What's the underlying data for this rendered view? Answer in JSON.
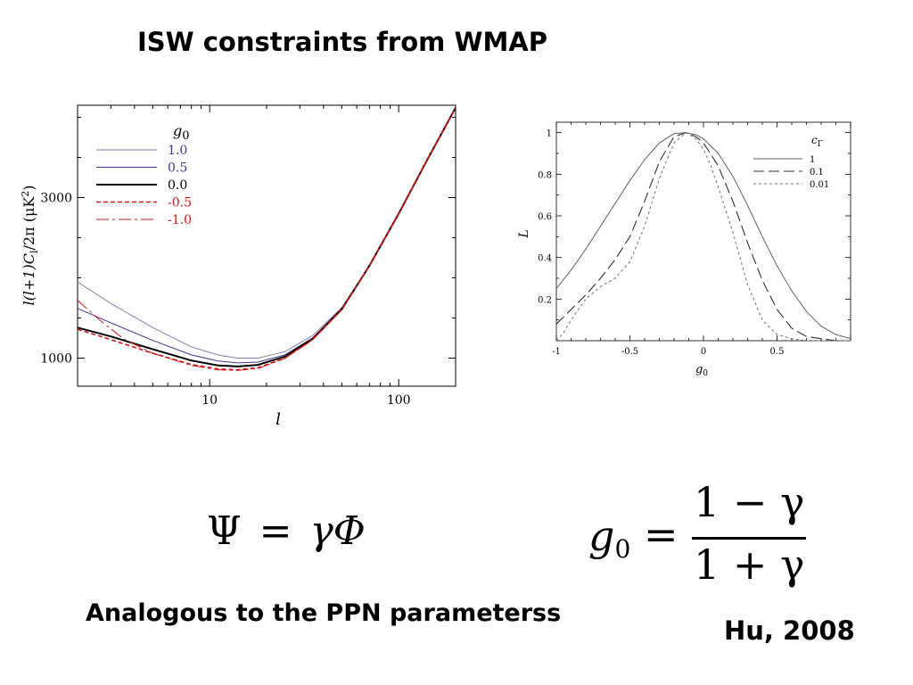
{
  "slide": {
    "title": "ISW constraints from WMAP",
    "caption_left": "Analogous to the PPN parameterss",
    "citation": "Hu, 2008"
  },
  "equations": {
    "psi": {
      "lhs": "Ψ",
      "eq": "=",
      "rhs": "γΦ"
    },
    "g0": {
      "sym": "g",
      "sub": "0",
      "eq": "=",
      "numerator": "1 − γ",
      "denominator": "1 + γ"
    }
  },
  "chart_data": [
    {
      "type": "line",
      "xscale": "log",
      "xlim": [
        2,
        200
      ],
      "ylim": [
        650,
        4150
      ],
      "xlabel": "l",
      "ylabel": "l(l+1)C",
      "ylabel_sub": "l",
      "ylabel_rest": "/2π (μK",
      "ylabel_sup": "2",
      "ylabel_end": ")",
      "xticks": [
        10,
        100
      ],
      "xtick_labels": [
        "10",
        "100"
      ],
      "yticks": [
        1000,
        3000
      ],
      "ytick_labels": [
        "1000",
        "3000"
      ],
      "legend": {
        "placement": "top-left",
        "title_sym": "g",
        "title_sub": "0"
      },
      "series": [
        {
          "name": "1.0",
          "color": "#8080a8",
          "dash": "none",
          "width": 1,
          "x": [
            2,
            3,
            5,
            8,
            11,
            14,
            18,
            25,
            35,
            50,
            70,
            100,
            140,
            200
          ],
          "y": [
            1950,
            1680,
            1380,
            1140,
            1040,
            1000,
            1000,
            1080,
            1280,
            1630,
            2150,
            2800,
            3450,
            4120
          ]
        },
        {
          "name": "0.5",
          "color": "#3a3a90",
          "dash": "none",
          "width": 1,
          "x": [
            2,
            3,
            5,
            8,
            11,
            14,
            18,
            25,
            35,
            50,
            70,
            100,
            140,
            200
          ],
          "y": [
            1620,
            1440,
            1220,
            1040,
            965,
            940,
            950,
            1040,
            1250,
            1620,
            2150,
            2800,
            3450,
            4120
          ]
        },
        {
          "name": "0.0",
          "color": "#000000",
          "dash": "none",
          "width": 2,
          "x": [
            2,
            3,
            5,
            8,
            11,
            14,
            18,
            25,
            35,
            50,
            70,
            100,
            140,
            200
          ],
          "y": [
            1380,
            1270,
            1110,
            970,
            910,
            895,
            915,
            1020,
            1240,
            1610,
            2150,
            2800,
            3450,
            4120
          ]
        },
        {
          "name": "-0.5",
          "color": "#d01818",
          "dash": "5,3",
          "width": 1.6,
          "x": [
            2,
            3,
            5,
            8,
            11,
            14,
            18,
            25,
            35,
            50,
            70,
            100,
            140,
            200
          ],
          "y": [
            1360,
            1230,
            1060,
            920,
            865,
            855,
            880,
            1000,
            1230,
            1605,
            2150,
            2800,
            3450,
            4120
          ]
        },
        {
          "name": "-1.0",
          "color": "#d01818",
          "dash": "14,4,3,4",
          "width": 1,
          "x": [
            2,
            2.6,
            3.5,
            5,
            8,
            11,
            14,
            18,
            25,
            35,
            50,
            70,
            100,
            140,
            200
          ],
          "y": [
            1720,
            1480,
            1240,
            1060,
            910,
            855,
            845,
            870,
            995,
            1225,
            1600,
            2150,
            2800,
            3450,
            4120
          ]
        }
      ]
    },
    {
      "type": "line",
      "xlim": [
        -1,
        1
      ],
      "ylim": [
        0,
        1.05
      ],
      "xlabel": "g",
      "xlabel_sub": "0",
      "ylabel": "L",
      "xticks": [
        -1,
        -0.5,
        0,
        0.5
      ],
      "xtick_labels": [
        "-1",
        "-0.5",
        "0",
        "0.5"
      ],
      "yticks": [
        0.2,
        0.4,
        0.6,
        0.8,
        1
      ],
      "ytick_labels": [
        "0.2",
        "0.4",
        "0.6",
        "0.8",
        "1"
      ],
      "legend": {
        "placement": "top-right",
        "title_sym": "c",
        "title_sub": "Γ"
      },
      "series": [
        {
          "name": "1",
          "color": "#606060",
          "dash": "none",
          "width": 1,
          "x": [
            -1,
            -0.9,
            -0.8,
            -0.7,
            -0.6,
            -0.5,
            -0.4,
            -0.3,
            -0.2,
            -0.12,
            -0.05,
            0,
            0.1,
            0.2,
            0.3,
            0.4,
            0.5,
            0.6,
            0.7,
            0.8,
            0.9,
            1
          ],
          "y": [
            0.25,
            0.34,
            0.44,
            0.55,
            0.66,
            0.77,
            0.87,
            0.95,
            0.995,
            1.0,
            0.99,
            0.97,
            0.9,
            0.79,
            0.65,
            0.5,
            0.36,
            0.24,
            0.14,
            0.07,
            0.03,
            0.01
          ]
        },
        {
          "name": "0.1",
          "color": "#303030",
          "dash": "12,5",
          "width": 1.1,
          "x": [
            -1,
            -0.9,
            -0.8,
            -0.7,
            -0.6,
            -0.5,
            -0.4,
            -0.3,
            -0.2,
            -0.12,
            -0.05,
            0,
            0.1,
            0.2,
            0.3,
            0.4,
            0.5,
            0.6,
            0.7,
            0.8,
            0.9,
            1
          ],
          "y": [
            0.08,
            0.15,
            0.22,
            0.3,
            0.39,
            0.5,
            0.67,
            0.86,
            0.98,
            1.0,
            0.98,
            0.95,
            0.84,
            0.67,
            0.47,
            0.29,
            0.15,
            0.06,
            0.02,
            0.01,
            0.0,
            0.0
          ]
        },
        {
          "name": "0.01",
          "color": "#707070",
          "dash": "3,3",
          "width": 1,
          "x": [
            -1,
            -0.95,
            -0.9,
            -0.8,
            -0.7,
            -0.6,
            -0.5,
            -0.4,
            -0.3,
            -0.2,
            -0.12,
            -0.05,
            0,
            0.05,
            0.1,
            0.2,
            0.3,
            0.4,
            0.5,
            0.6,
            0.7,
            0.8,
            1
          ],
          "y": [
            0.0,
            0.04,
            0.1,
            0.2,
            0.26,
            0.3,
            0.38,
            0.55,
            0.78,
            0.95,
            1.0,
            0.97,
            0.92,
            0.84,
            0.74,
            0.52,
            0.27,
            0.1,
            0.03,
            0.01,
            0.0,
            0.0,
            0.0
          ]
        }
      ]
    }
  ]
}
